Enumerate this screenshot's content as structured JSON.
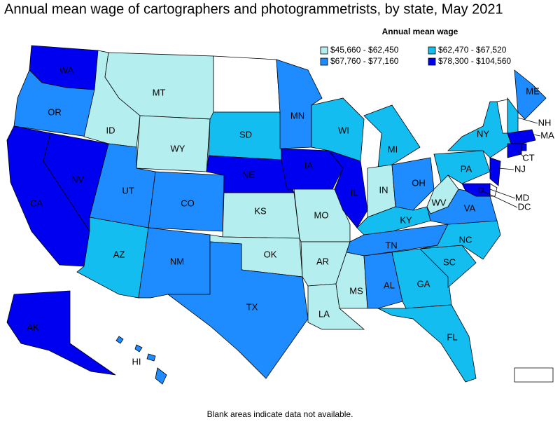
{
  "title": "Annual mean wage of cartographers and photogrammetrists, by state, May 2021",
  "legend": {
    "title": "Annual mean wage",
    "bins": [
      {
        "label": "$45,660 - $62,450",
        "color": "#b4eeee",
        "states": [
          "ID",
          "MT",
          "WY",
          "KS",
          "MO",
          "OK",
          "AR",
          "LA",
          "MS",
          "IN",
          "WV"
        ]
      },
      {
        "label": "$62,470 - $67,520",
        "color": "#14bdf0",
        "states": [
          "SD",
          "WI",
          "MI",
          "NY",
          "PA",
          "KY",
          "NC",
          "SC",
          "GA",
          "FL",
          "AZ",
          "NH"
        ]
      },
      {
        "label": "$67,760 - $77,160",
        "color": "#1e8cff",
        "states": [
          "OR",
          "UT",
          "CO",
          "NM",
          "TX",
          "MN",
          "OH",
          "TN",
          "AL",
          "VA",
          "ME",
          "HI"
        ]
      },
      {
        "label": "$78,300 - $104,560",
        "color": "#0000f0",
        "states": [
          "WA",
          "CA",
          "NV",
          "NE",
          "IA",
          "IL",
          "AK",
          "MA",
          "CT",
          "NJ",
          "MD",
          "DC"
        ]
      }
    ]
  },
  "footnote": "Blank areas indicate data not available."
}
